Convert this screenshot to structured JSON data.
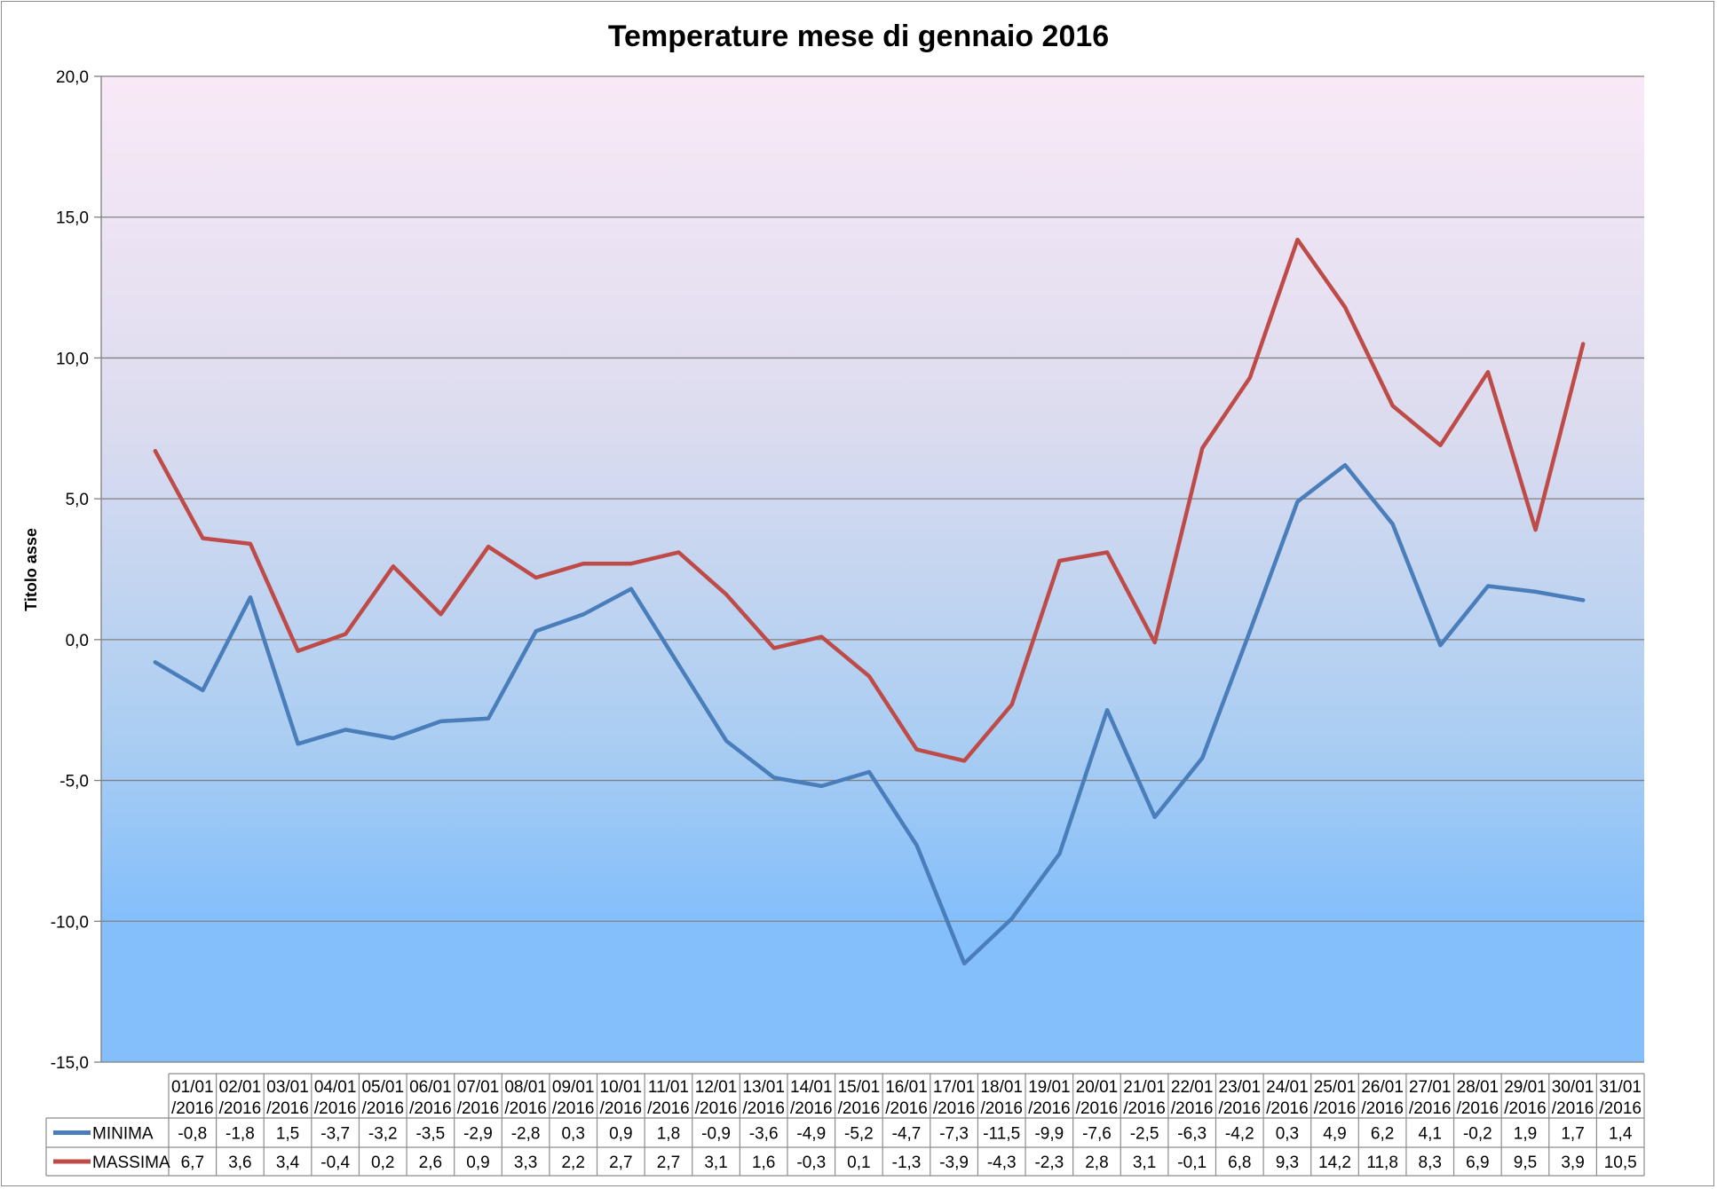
{
  "chart_data": {
    "type": "line",
    "title": "Temperature mese di gennaio 2016",
    "ylabel": "Titolo asse",
    "xlabel": "",
    "ylim": [
      -15,
      20
    ],
    "yticks": [
      "20,0",
      "15,0",
      "10,0",
      "5,0",
      "0,0",
      "-5,0",
      "-10,0",
      "-15,0"
    ],
    "grid": true,
    "legend": "data-table-left",
    "background_gradient": [
      "#f9e9f7",
      "#dcdcef",
      "#a9cdf2",
      "#85bffb"
    ],
    "categories": [
      [
        "01/01",
        "/2016"
      ],
      [
        "02/01",
        "/2016"
      ],
      [
        "03/01",
        "/2016"
      ],
      [
        "04/01",
        "/2016"
      ],
      [
        "05/01",
        "/2016"
      ],
      [
        "06/01",
        "/2016"
      ],
      [
        "07/01",
        "/2016"
      ],
      [
        "08/01",
        "/2016"
      ],
      [
        "09/01",
        "/2016"
      ],
      [
        "10/01",
        "/2016"
      ],
      [
        "11/01",
        "/2016"
      ],
      [
        "12/01",
        "/2016"
      ],
      [
        "13/01",
        "/2016"
      ],
      [
        "14/01",
        "/2016"
      ],
      [
        "15/01",
        "/2016"
      ],
      [
        "16/01",
        "/2016"
      ],
      [
        "17/01",
        "/2016"
      ],
      [
        "18/01",
        "/2016"
      ],
      [
        "19/01",
        "/2016"
      ],
      [
        "20/01",
        "/2016"
      ],
      [
        "21/01",
        "/2016"
      ],
      [
        "22/01",
        "/2016"
      ],
      [
        "23/01",
        "/2016"
      ],
      [
        "24/01",
        "/2016"
      ],
      [
        "25/01",
        "/2016"
      ],
      [
        "26/01",
        "/2016"
      ],
      [
        "27/01",
        "/2016"
      ],
      [
        "28/01",
        "/2016"
      ],
      [
        "29/01",
        "/2016"
      ],
      [
        "30/01",
        "/2016"
      ],
      [
        "31/01",
        "/2016"
      ]
    ],
    "series": [
      {
        "name": "MINIMA",
        "color": "#4a7ebb",
        "values": [
          -0.8,
          -1.8,
          1.5,
          -3.7,
          -3.2,
          -3.5,
          -2.9,
          -2.8,
          0.3,
          0.9,
          1.8,
          -0.9,
          -3.6,
          -4.9,
          -5.2,
          -4.7,
          -7.3,
          -11.5,
          -9.9,
          -7.6,
          -2.5,
          -6.3,
          -4.2,
          0.3,
          4.9,
          6.2,
          4.1,
          -0.2,
          1.9,
          1.7,
          1.4
        ],
        "labels": [
          "-0,8",
          "-1,8",
          "1,5",
          "-3,7",
          "-3,2",
          "-3,5",
          "-2,9",
          "-2,8",
          "0,3",
          "0,9",
          "1,8",
          "-0,9",
          "-3,6",
          "-4,9",
          "-5,2",
          "-4,7",
          "-7,3",
          "-11,5",
          "-9,9",
          "-7,6",
          "-2,5",
          "-6,3",
          "-4,2",
          "0,3",
          "4,9",
          "6,2",
          "4,1",
          "-0,2",
          "1,9",
          "1,7",
          "1,4"
        ]
      },
      {
        "name": "MASSIMA",
        "color": "#be4b48",
        "values": [
          6.7,
          3.6,
          3.4,
          -0.4,
          0.2,
          2.6,
          0.9,
          3.3,
          2.2,
          2.7,
          2.7,
          3.1,
          1.6,
          -0.3,
          0.1,
          -1.3,
          -3.9,
          -4.3,
          -2.3,
          2.8,
          3.1,
          -0.1,
          6.8,
          9.3,
          14.2,
          11.8,
          8.3,
          6.9,
          9.5,
          3.9,
          10.5
        ],
        "labels": [
          "6,7",
          "3,6",
          "3,4",
          "-0,4",
          "0,2",
          "2,6",
          "0,9",
          "3,3",
          "2,2",
          "2,7",
          "2,7",
          "3,1",
          "1,6",
          "-0,3",
          "0,1",
          "-1,3",
          "-3,9",
          "-4,3",
          "-2,3",
          "2,8",
          "3,1",
          "-0,1",
          "6,8",
          "9,3",
          "14,2",
          "11,8",
          "8,3",
          "6,9",
          "9,5",
          "3,9",
          "10,5"
        ]
      }
    ]
  }
}
